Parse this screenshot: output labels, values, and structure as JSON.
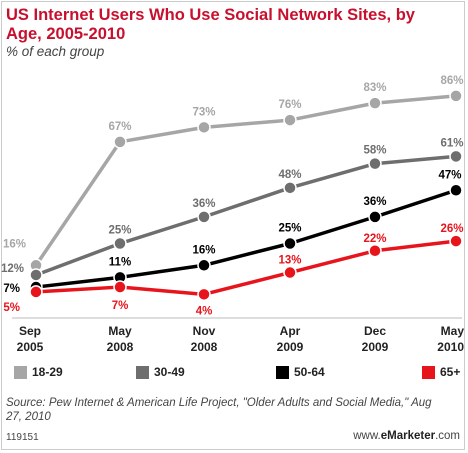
{
  "chart_data": {
    "type": "line",
    "title": "US Internet Users Who Use Social Network Sites, by Age, 2005-2010",
    "subtitle": "% of each group",
    "categories": [
      [
        "Sep",
        "2005"
      ],
      [
        "May",
        "2008"
      ],
      [
        "Nov",
        "2008"
      ],
      [
        "Apr",
        "2009"
      ],
      [
        "Dec",
        "2009"
      ],
      [
        "May",
        "2010"
      ]
    ],
    "ylim": [
      0,
      100
    ],
    "grid": false,
    "legend_position": "bottom",
    "series": [
      {
        "name": "18-29",
        "color": "#a6a6a6",
        "values": [
          16,
          67,
          73,
          76,
          83,
          86
        ],
        "labels": [
          "16%",
          "67%",
          "73%",
          "76%",
          "83%",
          "86%"
        ]
      },
      {
        "name": "30-49",
        "color": "#6e6e6e",
        "values": [
          12,
          25,
          36,
          48,
          58,
          61
        ],
        "labels": [
          "12%",
          "25%",
          "36%",
          "48%",
          "58%",
          "61%"
        ]
      },
      {
        "name": "50-64",
        "color": "#000000",
        "values": [
          7,
          11,
          16,
          25,
          36,
          47
        ],
        "labels": [
          "7%",
          "11%",
          "16%",
          "25%",
          "36%",
          "47%"
        ]
      },
      {
        "name": "65+",
        "color": "#e8141c",
        "values": [
          5,
          7,
          4,
          13,
          22,
          26
        ],
        "labels": [
          "5%",
          "7%",
          "4%",
          "13%",
          "22%",
          "26%"
        ]
      }
    ]
  },
  "footer": {
    "source": "Source: Pew Internet & American Life Project, \"Older Adults and Social Media,\" Aug 27, 2010",
    "code": "119151",
    "brand_prefix": "www.",
    "brand_name": "eMarketer",
    "brand_suffix": ".com"
  }
}
